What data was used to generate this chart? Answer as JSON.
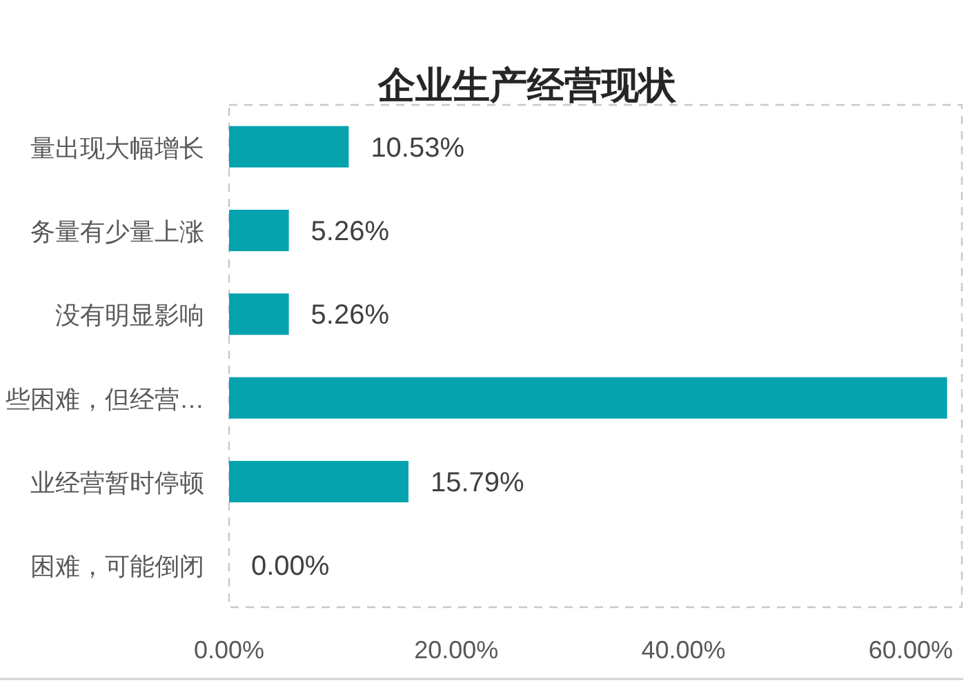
{
  "chart_data": {
    "type": "bar",
    "orientation": "horizontal",
    "title": "企业生产经营现状",
    "categories": [
      "量出现大幅增长",
      "务量有少量上涨",
      "没有明显影响",
      "些困难，但经营…",
      "业经营暂时停顿",
      "困难，可能倒闭"
    ],
    "values": [
      10.53,
      5.26,
      5.26,
      63.2,
      15.79,
      0
    ],
    "color": "#04a3ae",
    "value_labels": [
      "10.53%",
      "5.26%",
      "5.26%",
      null,
      "15.79%",
      "0.00%"
    ],
    "xlim": [
      0,
      64.5
    ],
    "xticks": [
      {
        "value": 0,
        "label": "0.00%"
      },
      {
        "value": 20,
        "label": "20.00%"
      },
      {
        "value": 40,
        "label": "40.00%"
      },
      {
        "value": 60,
        "label": "60.00%"
      }
    ]
  }
}
